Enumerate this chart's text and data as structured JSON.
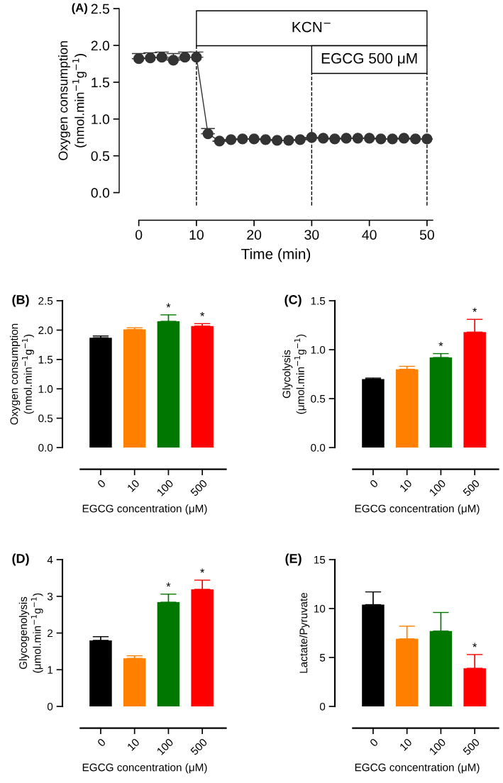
{
  "chart_data": [
    {
      "type": "line",
      "title": "(A)",
      "xlabel": "Time (min)",
      "ylabel": "Oxygen consumption\n(nmol.min$^{−1}$g$^{−1}$)",
      "color": "#333333",
      "marker": "circle",
      "x": [
        0,
        2,
        4,
        6,
        8,
        10,
        12,
        14,
        16,
        18,
        20,
        22,
        24,
        26,
        28,
        30,
        32,
        34,
        36,
        38,
        40,
        42,
        44,
        46,
        48,
        50
      ],
      "values": [
        1.82,
        1.83,
        1.84,
        1.8,
        1.84,
        1.84,
        0.8,
        0.7,
        0.72,
        0.73,
        0.73,
        0.72,
        0.71,
        0.71,
        0.72,
        0.75,
        0.74,
        0.73,
        0.74,
        0.74,
        0.74,
        0.73,
        0.73,
        0.74,
        0.73,
        0.73
      ],
      "errors": [
        [
          1.82,
          1.89
        ],
        [
          1.83,
          1.9
        ],
        [
          1.84,
          1.91
        ],
        [
          1.8,
          1.89
        ],
        [
          1.84,
          1.91
        ],
        [
          1.84,
          1.91
        ],
        [
          0.8,
          0.87
        ],
        null,
        null,
        null,
        null,
        null,
        null,
        null,
        null,
        null,
        null,
        null,
        null,
        null,
        null,
        null,
        null,
        null,
        null,
        null
      ],
      "xlim": [
        -3.4,
        51
      ],
      "ylim": [
        0,
        2.5
      ],
      "xticks": [
        0,
        10,
        20,
        30,
        40,
        50
      ],
      "yticks": [
        {
          "value": 0,
          "label": "0.0"
        },
        {
          "value": 0.5,
          "label": "0.5"
        },
        {
          "value": 1,
          "label": "1.0"
        },
        {
          "value": 1.5,
          "label": "1.5"
        },
        {
          "value": 2,
          "label": "2.0"
        },
        {
          "value": 2.5,
          "label": "2.5"
        }
      ],
      "ref_lines": [
        {
          "axis": "x",
          "value": 10,
          "line_style": "dashed",
          "color": "#000000"
        },
        {
          "axis": "x",
          "value": 30,
          "line_style": "dashed",
          "color": "#000000"
        },
        {
          "axis": "x",
          "value": 50,
          "line_style": "dashed",
          "color": "#000000"
        }
      ],
      "bands": [
        {
          "axis": "x",
          "from": 10,
          "to": 50,
          "label": "KCN$^{−}$",
          "color": "#ffffff"
        },
        {
          "axis": "x",
          "from": 30,
          "to": 50,
          "label": "EGCG 500 μM",
          "color": "#ffffff"
        }
      ]
    },
    {
      "type": "bar",
      "title": "(B)",
      "xlabel": "EGCG concentration (μM)",
      "ylabel": "Oxygen consumption\n(nmol.min$^{−1}$g$^{−1}$)",
      "categories": [
        "0",
        "10",
        "100",
        "500"
      ],
      "values": [
        1.87,
        2.01,
        2.15,
        2.07
      ],
      "colors": [
        "#000000",
        "#ff8000",
        "#007800",
        "#ff0000"
      ],
      "errors": [
        [
          1.87,
          1.9
        ],
        [
          2.01,
          2.04
        ],
        [
          2.15,
          2.26
        ],
        [
          2.07,
          2.11
        ]
      ],
      "ylim": [
        0,
        2.5
      ],
      "yticks": [
        {
          "value": 0,
          "label": "0.0"
        },
        {
          "value": 0.5,
          "label": "0.5"
        },
        {
          "value": 1,
          "label": "1.0"
        },
        {
          "value": 1.5,
          "label": "1.5"
        },
        {
          "value": 2,
          "label": "2.0"
        },
        {
          "value": 2.5,
          "label": "2.5"
        }
      ],
      "annotations": [
        {
          "text": "*",
          "x": "100",
          "y": 2.26
        },
        {
          "text": "*",
          "x": "500",
          "y": 2.11
        }
      ]
    },
    {
      "type": "bar",
      "title": "(C)",
      "xlabel": "EGCG concentration (μM)",
      "ylabel": "Glycolysis\n(μmol.min$^{−1}$g$^{−1}$)",
      "categories": [
        "0",
        "10",
        "100",
        "500"
      ],
      "values": [
        0.7,
        0.8,
        0.92,
        1.18
      ],
      "colors": [
        "#000000",
        "#ff8000",
        "#007800",
        "#ff0000"
      ],
      "errors": [
        [
          0.7,
          0.71
        ],
        [
          0.8,
          0.83
        ],
        [
          0.92,
          0.96
        ],
        [
          1.18,
          1.31
        ]
      ],
      "ylim": [
        0,
        1.5
      ],
      "yticks": [
        {
          "value": 0,
          "label": "0.0"
        },
        {
          "value": 0.5,
          "label": "0.5"
        },
        {
          "value": 1,
          "label": "1.0"
        },
        {
          "value": 1.5,
          "label": "1.5"
        }
      ],
      "annotations": [
        {
          "text": "*",
          "x": "100",
          "y": 0.96
        },
        {
          "text": "*",
          "x": "500",
          "y": 1.31
        }
      ]
    },
    {
      "type": "bar",
      "title": "(D)",
      "xlabel": "EGCG concentration (μM)",
      "ylabel": "Glycogenolysis\n(μmol.min$^{−1}$g$^{−1}$)",
      "categories": [
        "0",
        "10",
        "100",
        "500"
      ],
      "values": [
        1.8,
        1.31,
        2.84,
        3.19
      ],
      "colors": [
        "#000000",
        "#ff8000",
        "#007800",
        "#ff0000"
      ],
      "errors": [
        [
          1.8,
          1.9
        ],
        [
          1.31,
          1.38
        ],
        [
          2.84,
          3.06
        ],
        [
          3.19,
          3.44
        ]
      ],
      "ylim": [
        0,
        4
      ],
      "yticks": [
        0,
        1,
        2,
        3,
        4
      ],
      "annotations": [
        {
          "text": "*",
          "x": "100",
          "y": 3.06
        },
        {
          "text": "*",
          "x": "500",
          "y": 3.44
        }
      ]
    },
    {
      "type": "bar",
      "title": "(E)",
      "xlabel": "EGCG concentration (μM)",
      "ylabel": "Lactate/Pyruvate",
      "categories": [
        "0",
        "10",
        "100",
        "500"
      ],
      "values": [
        10.4,
        6.9,
        7.7,
        3.9
      ],
      "colors": [
        "#000000",
        "#ff8000",
        "#007800",
        "#ff0000"
      ],
      "errors": [
        [
          10.4,
          11.7
        ],
        [
          6.9,
          8.2
        ],
        [
          7.7,
          9.6
        ],
        [
          3.9,
          5.3
        ]
      ],
      "ylim": [
        0,
        15
      ],
      "yticks": [
        0,
        5,
        10,
        15
      ],
      "annotations": [
        {
          "text": "*",
          "x": "500",
          "y": 5.3
        }
      ]
    }
  ]
}
